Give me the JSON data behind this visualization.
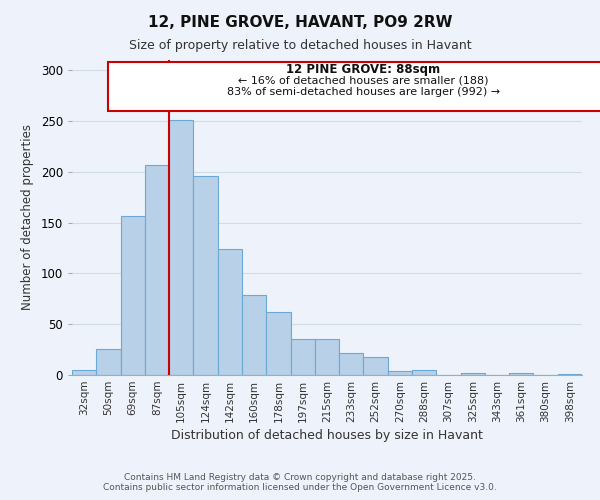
{
  "title": "12, PINE GROVE, HAVANT, PO9 2RW",
  "subtitle": "Size of property relative to detached houses in Havant",
  "xlabel": "Distribution of detached houses by size in Havant",
  "ylabel": "Number of detached properties",
  "bar_labels": [
    "32sqm",
    "50sqm",
    "69sqm",
    "87sqm",
    "105sqm",
    "124sqm",
    "142sqm",
    "160sqm",
    "178sqm",
    "197sqm",
    "215sqm",
    "233sqm",
    "252sqm",
    "270sqm",
    "288sqm",
    "307sqm",
    "325sqm",
    "343sqm",
    "361sqm",
    "380sqm",
    "398sqm"
  ],
  "bar_values": [
    5,
    26,
    156,
    207,
    251,
    196,
    124,
    79,
    62,
    35,
    35,
    22,
    18,
    4,
    5,
    0,
    2,
    0,
    2,
    0,
    1
  ],
  "bar_color": "#b8d0e8",
  "bar_edge_color": "#6aaad4",
  "vline_x": 3,
  "vline_color": "#cc0000",
  "ylim": [
    0,
    310
  ],
  "yticks": [
    0,
    50,
    100,
    150,
    200,
    250,
    300
  ],
  "annotation_title": "12 PINE GROVE: 88sqm",
  "annotation_line1": "← 16% of detached houses are smaller (188)",
  "annotation_line2": "83% of semi-detached houses are larger (992) →",
  "footnote1": "Contains HM Land Registry data © Crown copyright and database right 2025.",
  "footnote2": "Contains public sector information licensed under the Open Government Licence v3.0.",
  "background_color": "#eef2fa",
  "grid_color": "#d0dce8"
}
